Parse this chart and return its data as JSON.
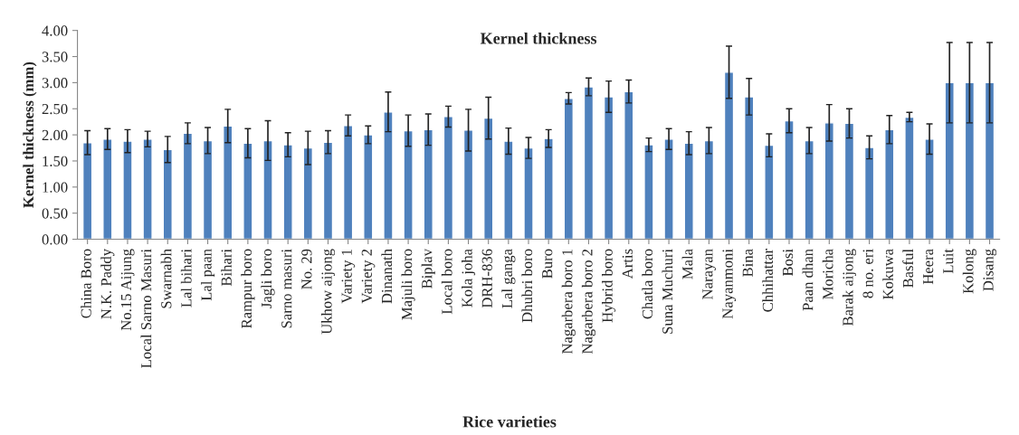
{
  "chart_data": {
    "type": "bar",
    "title": "Kernel thickness",
    "xlabel": "Rice varieties",
    "ylabel": "Kernel thickness (mm)",
    "categories": [
      "China Boro",
      "N.K. Paddy",
      "No.15 Aijung",
      "Local Sarno Masuri",
      "Swarnabh",
      "Lal bihari",
      "Lal paan",
      "Bihari",
      "Rampur boro",
      "Jagli boro",
      "Sarno masuri",
      "No. 29",
      "Ukhow aijong",
      "Variety 1",
      "Variety 2",
      "Dinanath",
      "Majuli boro",
      "Biplav",
      "Local boro",
      "Kola joha",
      "DRH-836",
      "Lal ganga",
      "Dhubri boro",
      "Buro",
      "Nagarbera boro 1",
      "Nagarbera boro 2",
      "Hybrid boro",
      "Artis",
      "Chatla boro",
      "Suna Muchuri",
      "Mala",
      "Narayan",
      "Nayanmoni",
      "Bina",
      "Chhihattar",
      "Bosi",
      "Paan dhan",
      "Moricha",
      "Barak aijong",
      "8 no. eri",
      "Kokuwa",
      "Basful",
      "Heera",
      "Luit",
      "Kolong",
      "Disang"
    ],
    "values": [
      1.85,
      1.92,
      1.88,
      1.92,
      1.72,
      2.03,
      1.89,
      2.17,
      1.84,
      1.89,
      1.81,
      1.75,
      1.86,
      2.18,
      2.0,
      2.44,
      2.08,
      2.1,
      2.35,
      2.09,
      2.32,
      1.88,
      1.75,
      1.93,
      2.7,
      2.92,
      2.73,
      2.83,
      1.81,
      1.92,
      1.84,
      1.89,
      3.2,
      2.73,
      1.8,
      2.27,
      1.89,
      2.23,
      2.22,
      1.76,
      2.1,
      2.34,
      1.92,
      3.0,
      3.0,
      3.0
    ],
    "errors": [
      0.23,
      0.2,
      0.22,
      0.15,
      0.25,
      0.2,
      0.25,
      0.32,
      0.28,
      0.38,
      0.23,
      0.32,
      0.22,
      0.2,
      0.17,
      0.38,
      0.3,
      0.3,
      0.2,
      0.4,
      0.4,
      0.25,
      0.2,
      0.17,
      0.11,
      0.17,
      0.3,
      0.22,
      0.13,
      0.2,
      0.22,
      0.25,
      0.5,
      0.35,
      0.22,
      0.23,
      0.25,
      0.35,
      0.28,
      0.22,
      0.27,
      0.09,
      0.29,
      0.77,
      0.77,
      0.77
    ],
    "color": "#4f81bd",
    "ylim": [
      0,
      4
    ],
    "yticks": [
      {
        "value": 0,
        "label": "0.00"
      },
      {
        "value": 0.5,
        "label": "0.50"
      },
      {
        "value": 1,
        "label": "1.00"
      },
      {
        "value": 1.5,
        "label": "1.50"
      },
      {
        "value": 2,
        "label": "2.00"
      },
      {
        "value": 2.5,
        "label": "2.50"
      },
      {
        "value": 3,
        "label": "3.00"
      },
      {
        "value": 3.5,
        "label": "3.50"
      },
      {
        "value": 4,
        "label": "4.00"
      }
    ],
    "grid": false,
    "legend": false
  }
}
